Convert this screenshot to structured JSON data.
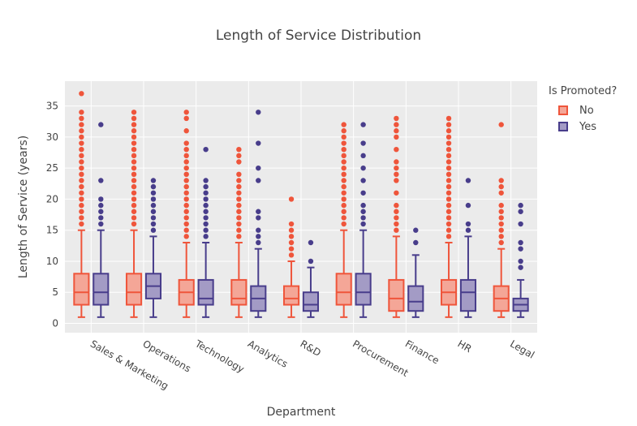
{
  "chart_data": {
    "type": "box",
    "title": "Length of Service Distribution",
    "xlabel": "Department",
    "ylabel": "Length of Service (years)",
    "ylim": [
      -1.5,
      39
    ],
    "yticks": [
      0,
      5,
      10,
      15,
      20,
      25,
      30,
      35
    ],
    "grid": true,
    "legend_title": "Is Promoted?",
    "legend_position": "top-right",
    "categories": [
      "Sales & Marketing",
      "Operations",
      "Technology",
      "Analytics",
      "R&D",
      "Procurement",
      "Finance",
      "HR",
      "Legal"
    ],
    "series": [
      {
        "name": "No",
        "stroke": "#ef553b",
        "fill": "#f4a697",
        "boxes": [
          {
            "min": 1,
            "q1": 3,
            "median": 5,
            "q3": 8,
            "max": 15,
            "outliers": [
              16,
              17,
              18,
              19,
              20,
              21,
              22,
              23,
              24,
              25,
              26,
              27,
              28,
              29,
              30,
              31,
              32,
              33,
              34,
              37
            ]
          },
          {
            "min": 1,
            "q1": 3,
            "median": 5,
            "q3": 8,
            "max": 15,
            "outliers": [
              16,
              17,
              18,
              19,
              20,
              21,
              22,
              23,
              24,
              25,
              26,
              27,
              28,
              29,
              30,
              31,
              32,
              33,
              34
            ]
          },
          {
            "min": 1,
            "q1": 3,
            "median": 5,
            "q3": 7,
            "max": 13,
            "outliers": [
              14,
              15,
              16,
              17,
              18,
              19,
              20,
              21,
              22,
              23,
              24,
              25,
              26,
              27,
              28,
              29,
              31,
              33,
              34
            ]
          },
          {
            "min": 1,
            "q1": 3,
            "median": 4,
            "q3": 7,
            "max": 13,
            "outliers": [
              14,
              15,
              16,
              17,
              18,
              19,
              20,
              21,
              22,
              23,
              24,
              26,
              27,
              28
            ]
          },
          {
            "min": 1,
            "q1": 3,
            "median": 4,
            "q3": 6,
            "max": 10,
            "outliers": [
              11,
              12,
              13,
              14,
              15,
              16,
              20
            ]
          },
          {
            "min": 1,
            "q1": 3,
            "median": 5,
            "q3": 8,
            "max": 15,
            "outliers": [
              16,
              17,
              18,
              19,
              20,
              21,
              22,
              23,
              24,
              25,
              26,
              27,
              28,
              29,
              30,
              31,
              32
            ]
          },
          {
            "min": 1,
            "q1": 2,
            "median": 4,
            "q3": 7,
            "max": 14,
            "outliers": [
              15,
              16,
              17,
              18,
              19,
              21,
              23,
              24,
              25,
              26,
              28,
              30,
              31,
              32,
              33
            ]
          },
          {
            "min": 1,
            "q1": 3,
            "median": 5,
            "q3": 7,
            "max": 13,
            "outliers": [
              14,
              15,
              16,
              17,
              18,
              19,
              20,
              21,
              22,
              23,
              24,
              25,
              26,
              27,
              28,
              29,
              30,
              31,
              32,
              33
            ]
          },
          {
            "min": 1,
            "q1": 2,
            "median": 4,
            "q3": 6,
            "max": 12,
            "outliers": [
              13,
              14,
              15,
              16,
              17,
              18,
              19,
              21,
              22,
              23,
              32
            ]
          }
        ]
      },
      {
        "name": "Yes",
        "stroke": "#483d8b",
        "fill": "#a39bc5",
        "boxes": [
          {
            "min": 1,
            "q1": 3,
            "median": 5,
            "q3": 8,
            "max": 15,
            "outliers": [
              16,
              17,
              18,
              19,
              20,
              23,
              32
            ]
          },
          {
            "min": 1,
            "q1": 4,
            "median": 6,
            "q3": 8,
            "max": 14,
            "outliers": [
              15,
              16,
              17,
              18,
              19,
              20,
              21,
              22,
              23
            ]
          },
          {
            "min": 1,
            "q1": 3,
            "median": 4,
            "q3": 7,
            "max": 13,
            "outliers": [
              14,
              15,
              16,
              17,
              18,
              19,
              20,
              21,
              22,
              23,
              28
            ]
          },
          {
            "min": 1,
            "q1": 2,
            "median": 4,
            "q3": 6,
            "max": 12,
            "outliers": [
              13,
              14,
              15,
              17,
              18,
              23,
              25,
              29,
              34
            ]
          },
          {
            "min": 1,
            "q1": 2,
            "median": 3,
            "q3": 5,
            "max": 9,
            "outliers": [
              10,
              13
            ]
          },
          {
            "min": 1,
            "q1": 3,
            "median": 5,
            "q3": 8,
            "max": 15,
            "outliers": [
              16,
              17,
              18,
              19,
              21,
              23,
              25,
              27,
              29,
              32
            ]
          },
          {
            "min": 1,
            "q1": 2,
            "median": 3.5,
            "q3": 6,
            "max": 11,
            "outliers": [
              13,
              15
            ]
          },
          {
            "min": 1,
            "q1": 2,
            "median": 5,
            "q3": 7,
            "max": 14,
            "outliers": [
              15,
              16,
              19,
              23
            ]
          },
          {
            "min": 1,
            "q1": 2,
            "median": 3,
            "q3": 4,
            "max": 7,
            "outliers": [
              9,
              10,
              12,
              13,
              16,
              18,
              19
            ]
          }
        ]
      }
    ]
  }
}
